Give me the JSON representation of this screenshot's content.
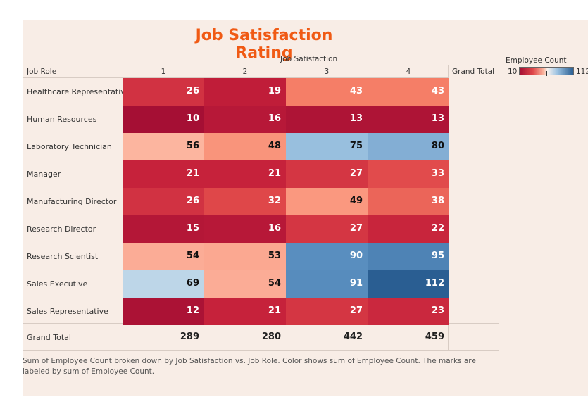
{
  "title": "Job Satisfaction Rating",
  "column_header": "Job Satisfaction",
  "row_header": "Job Role",
  "grand_total_label": "Grand Total",
  "legend": {
    "title": "Employee Count",
    "min": "10",
    "max": "112"
  },
  "caption": "Sum of Employee Count broken down by Job Satisfaction vs. Job Role.  Color shows sum of Employee Count.  The marks are labeled by sum of Employee Count.",
  "chart_data": {
    "type": "heatmap",
    "title": "Job Satisfaction Rating",
    "xlabel": "Job Satisfaction",
    "ylabel": "Job Role",
    "x": [
      "1",
      "2",
      "3",
      "4"
    ],
    "y": [
      "Healthcare Representative",
      "Human Resources",
      "Laboratory Technician",
      "Manager",
      "Manufacturing Director",
      "Research Director",
      "Research Scientist",
      "Sales Executive",
      "Sales Representative"
    ],
    "values": [
      [
        26,
        19,
        43,
        43
      ],
      [
        10,
        16,
        13,
        13
      ],
      [
        56,
        48,
        75,
        80
      ],
      [
        21,
        21,
        27,
        33
      ],
      [
        26,
        32,
        49,
        38
      ],
      [
        15,
        16,
        27,
        22
      ],
      [
        54,
        53,
        90,
        95
      ],
      [
        69,
        54,
        91,
        112
      ],
      [
        12,
        21,
        27,
        23
      ]
    ],
    "column_totals": [
      289,
      280,
      442,
      459
    ],
    "color_range": [
      10,
      112
    ],
    "colors": {
      "low": "#a50f34",
      "mid": "#f7f2ef",
      "high": "#2a5e92",
      "title": "#f05a14"
    }
  }
}
